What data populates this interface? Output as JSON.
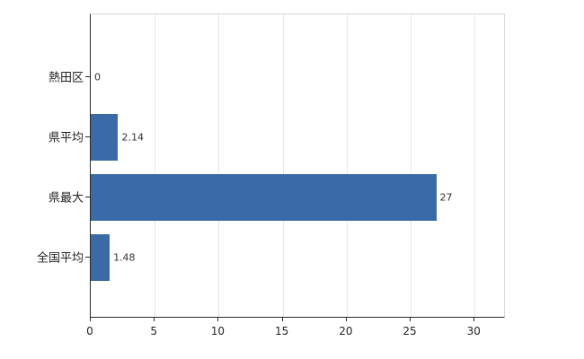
{
  "chart_data": {
    "type": "bar",
    "orientation": "horizontal",
    "title": "",
    "categories": [
      "熱田区",
      "県平均",
      "県最大",
      "全国平均"
    ],
    "values": [
      0,
      2.14,
      27,
      1.48
    ],
    "value_labels": [
      "0",
      "2.14",
      "27",
      "1.48"
    ],
    "xticks": [
      0,
      5,
      10,
      15,
      20,
      25,
      30
    ],
    "xtick_labels": [
      "0",
      "5",
      "10",
      "15",
      "20",
      "25",
      "30"
    ],
    "xlim": [
      0,
      32.3
    ],
    "bar_color": "#3a6ba6",
    "grid": true,
    "legend_position": "none",
    "xlabel": "",
    "ylabel": ""
  }
}
